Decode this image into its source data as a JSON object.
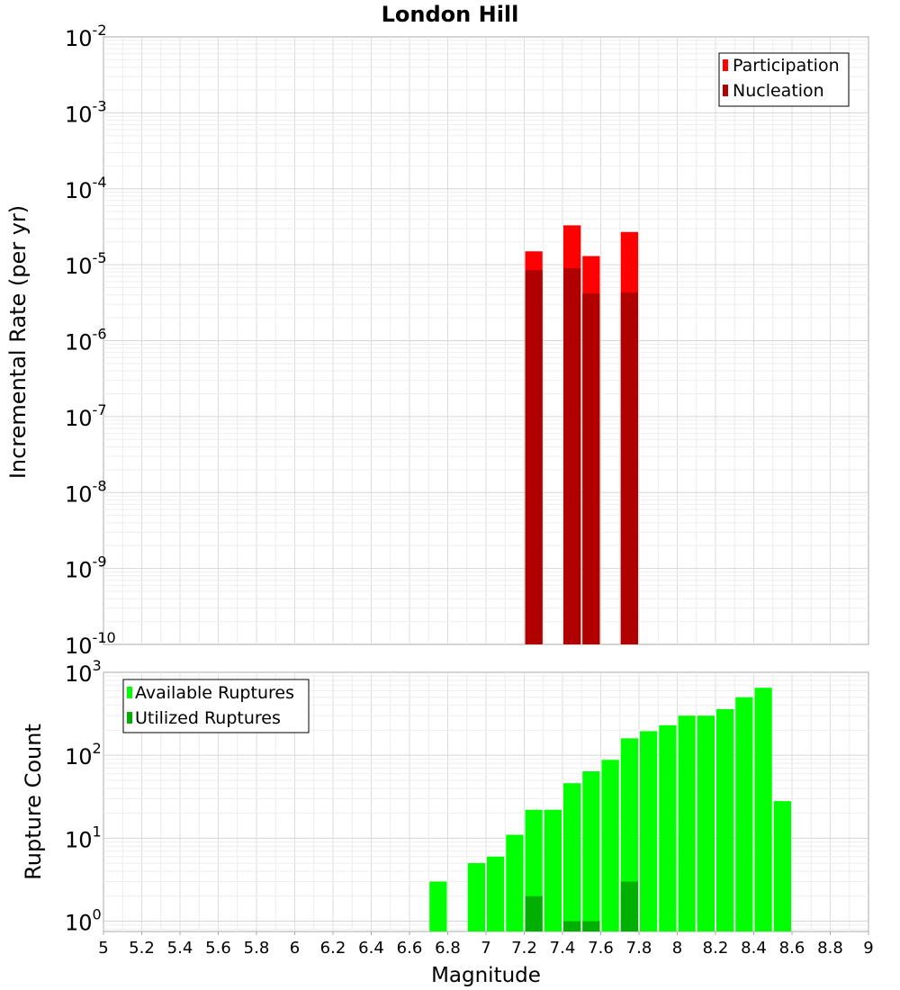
{
  "chart_data": [
    {
      "type": "bar",
      "title": "London Hill",
      "xlabel": "",
      "ylabel": "Incremental Rate (per yr)",
      "yscale": "log",
      "ylim": [
        1e-10,
        0.01
      ],
      "xlim": [
        5,
        9
      ],
      "bar_width": 0.1,
      "y_tick_exponents": [
        -10,
        -9,
        -8,
        -7,
        -6,
        -5,
        -4,
        -3,
        -2
      ],
      "legend": {
        "position": "top-right",
        "entries": [
          "Participation",
          "Nucleation"
        ]
      },
      "series": [
        {
          "name": "Participation",
          "color": "#ff0000",
          "x": [
            7.25,
            7.45,
            7.55,
            7.75
          ],
          "values": [
            1.5e-05,
            3.3e-05,
            1.3e-05,
            2.7e-05
          ]
        },
        {
          "name": "Nucleation",
          "color": "#b00000",
          "x": [
            7.25,
            7.45,
            7.55,
            7.75
          ],
          "values": [
            8.5e-06,
            9e-06,
            4.2e-06,
            4.3e-06
          ]
        }
      ]
    },
    {
      "type": "bar",
      "title": "",
      "xlabel": "Magnitude",
      "ylabel": "Rupture Count",
      "yscale": "log",
      "ylim": [
        0.75,
        1000
      ],
      "xlim": [
        5,
        9
      ],
      "bar_width": 0.1,
      "y_tick_exponents": [
        0,
        1,
        2,
        3
      ],
      "x_ticks": [
        "5",
        "5.2",
        "5.4",
        "5.6",
        "5.8",
        "6",
        "6.2",
        "6.4",
        "6.6",
        "6.8",
        "7",
        "7.2",
        "7.4",
        "7.6",
        "7.8",
        "8",
        "8.2",
        "8.4",
        "8.6",
        "8.8",
        "9"
      ],
      "legend": {
        "position": "top-left",
        "entries": [
          "Available Ruptures",
          "Utilized Ruptures"
        ]
      },
      "series": [
        {
          "name": "Available Ruptures",
          "color": "#00ff00",
          "x": [
            6.75,
            6.95,
            7.05,
            7.15,
            7.25,
            7.35,
            7.45,
            7.55,
            7.65,
            7.75,
            7.85,
            7.95,
            8.05,
            8.15,
            8.25,
            8.35,
            8.45,
            8.55
          ],
          "values": [
            3,
            5,
            6,
            11,
            22,
            22,
            46,
            64,
            88,
            160,
            195,
            230,
            300,
            300,
            360,
            500,
            650,
            28
          ]
        },
        {
          "name": "Utilized Ruptures",
          "color": "#00b000",
          "x": [
            7.25,
            7.45,
            7.55,
            7.75
          ],
          "values": [
            2,
            1,
            1,
            3
          ]
        }
      ]
    }
  ]
}
